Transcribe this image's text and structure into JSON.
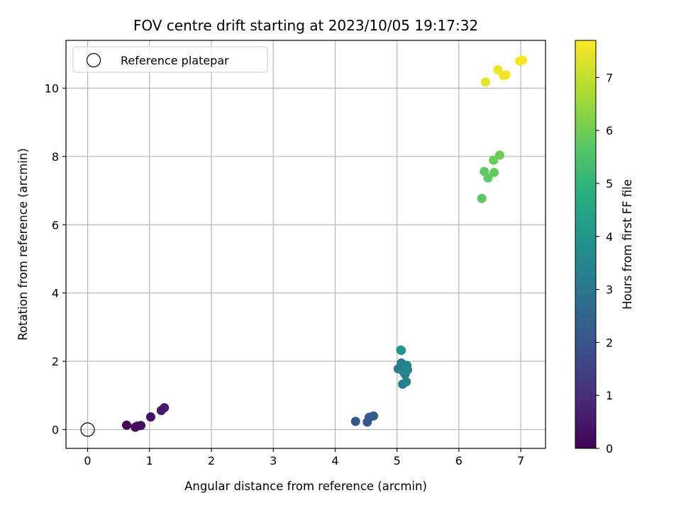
{
  "chart_data": {
    "type": "scatter",
    "title": "FOV centre drift starting at 2023/10/05 19:17:32",
    "xlabel": "Angular distance from reference (arcmin)",
    "ylabel": "Rotation from reference (arcmin)",
    "xlim": [
      -0.35,
      7.4
    ],
    "ylim": [
      -0.55,
      11.4
    ],
    "xticks": [
      "0",
      "1",
      "2",
      "3",
      "4",
      "5",
      "6",
      "7"
    ],
    "yticks": [
      "0",
      "2",
      "4",
      "6",
      "8",
      "10"
    ],
    "grid": true,
    "legend": {
      "placement": "top-left",
      "entries": [
        "Reference platepar"
      ]
    },
    "reference": {
      "x": 0,
      "y": 0
    },
    "colorbar": {
      "label": "Hours from first FF file",
      "range": [
        0,
        7.7
      ],
      "ticks": [
        "0",
        "1",
        "2",
        "3",
        "4",
        "5",
        "6",
        "7"
      ],
      "colormap": "viridis"
    },
    "points": [
      {
        "x": 0.63,
        "y": 0.13,
        "c": 0.05
      },
      {
        "x": 0.77,
        "y": 0.07,
        "c": 0.15
      },
      {
        "x": 0.8,
        "y": 0.1,
        "c": 0.25
      },
      {
        "x": 0.86,
        "y": 0.12,
        "c": 0.3
      },
      {
        "x": 1.02,
        "y": 0.37,
        "c": 0.4
      },
      {
        "x": 1.19,
        "y": 0.56,
        "c": 0.5
      },
      {
        "x": 1.24,
        "y": 0.64,
        "c": 0.55
      },
      {
        "x": 4.33,
        "y": 0.24,
        "c": 2.05
      },
      {
        "x": 4.52,
        "y": 0.22,
        "c": 2.1
      },
      {
        "x": 4.55,
        "y": 0.36,
        "c": 2.15
      },
      {
        "x": 4.62,
        "y": 0.4,
        "c": 2.2
      },
      {
        "x": 5.02,
        "y": 1.78,
        "c": 3.1
      },
      {
        "x": 5.07,
        "y": 1.95,
        "c": 3.2
      },
      {
        "x": 5.09,
        "y": 1.33,
        "c": 3.25
      },
      {
        "x": 5.13,
        "y": 1.62,
        "c": 3.3
      },
      {
        "x": 5.16,
        "y": 1.88,
        "c": 3.35
      },
      {
        "x": 5.15,
        "y": 1.4,
        "c": 3.4
      },
      {
        "x": 5.17,
        "y": 1.75,
        "c": 3.45
      },
      {
        "x": 5.1,
        "y": 1.7,
        "c": 3.5
      },
      {
        "x": 5.07,
        "y": 2.32,
        "c": 3.9
      },
      {
        "x": 5.06,
        "y": 2.33,
        "c": 4.0
      },
      {
        "x": 6.37,
        "y": 6.77,
        "c": 5.7
      },
      {
        "x": 6.41,
        "y": 7.56,
        "c": 5.75
      },
      {
        "x": 6.47,
        "y": 7.37,
        "c": 5.8
      },
      {
        "x": 6.57,
        "y": 7.53,
        "c": 5.85
      },
      {
        "x": 6.56,
        "y": 7.89,
        "c": 5.9
      },
      {
        "x": 6.66,
        "y": 8.04,
        "c": 5.95
      },
      {
        "x": 6.43,
        "y": 10.18,
        "c": 7.4
      },
      {
        "x": 6.63,
        "y": 10.54,
        "c": 7.45
      },
      {
        "x": 6.72,
        "y": 10.37,
        "c": 7.5
      },
      {
        "x": 6.76,
        "y": 10.39,
        "c": 7.55
      },
      {
        "x": 6.98,
        "y": 10.8,
        "c": 7.6
      },
      {
        "x": 7.03,
        "y": 10.82,
        "c": 7.65
      }
    ]
  }
}
